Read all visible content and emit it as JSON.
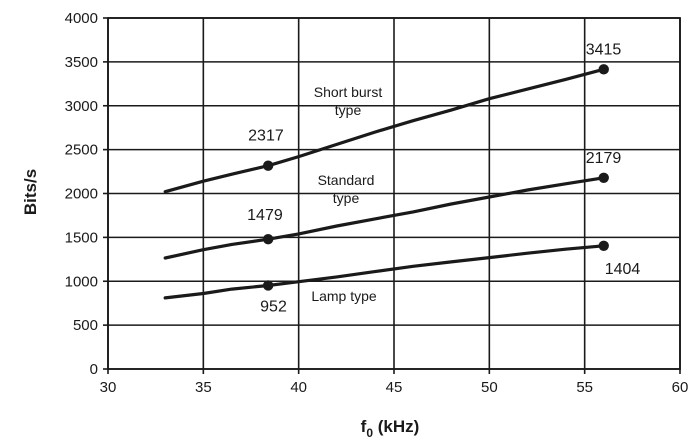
{
  "chart_data": {
    "type": "line",
    "xlabel_main": "f",
    "xlabel_sub": "0",
    "xlabel_unit": " (kHz)",
    "ylabel": "Bits/s",
    "xlim": [
      30,
      60
    ],
    "ylim": [
      0,
      4000
    ],
    "x_ticks": [
      30,
      35,
      40,
      45,
      50,
      55,
      60
    ],
    "y_ticks": [
      0,
      500,
      1000,
      1500,
      2000,
      2500,
      3000,
      3500,
      4000
    ],
    "grid": true,
    "series": [
      {
        "id": "short-burst",
        "x": [
          33,
          35,
          36.5,
          38.4,
          40,
          42,
          44,
          46,
          48,
          50,
          52,
          54,
          56
        ],
        "y": [
          2020,
          2140,
          2220,
          2317,
          2420,
          2560,
          2700,
          2830,
          2950,
          3080,
          3190,
          3300,
          3415
        ],
        "marked_points": [
          {
            "x": 38.4,
            "y": 2317,
            "label": "2317"
          },
          {
            "x": 56,
            "y": 3415,
            "label": "3415"
          }
        ],
        "annotation_lines": [
          "Short  burst",
          "type"
        ]
      },
      {
        "id": "standard",
        "x": [
          33,
          35,
          36.5,
          38.4,
          40,
          42,
          44,
          46,
          48,
          50,
          52,
          54,
          56
        ],
        "y": [
          1265,
          1360,
          1420,
          1479,
          1540,
          1630,
          1710,
          1790,
          1880,
          1960,
          2040,
          2110,
          2179
        ],
        "marked_points": [
          {
            "x": 38.4,
            "y": 1479,
            "label": "1479"
          },
          {
            "x": 56,
            "y": 2179,
            "label": "2179"
          }
        ],
        "annotation_lines": [
          "Standard",
          "type"
        ]
      },
      {
        "id": "lamp",
        "x": [
          33,
          35,
          36.5,
          38.4,
          40,
          42,
          44,
          46,
          48,
          50,
          52,
          54,
          56
        ],
        "y": [
          810,
          860,
          910,
          952,
          995,
          1050,
          1110,
          1170,
          1220,
          1270,
          1320,
          1365,
          1404
        ],
        "marked_points": [
          {
            "x": 38.4,
            "y": 952,
            "label": "952"
          },
          {
            "x": 56,
            "y": 1404,
            "label": "1404"
          }
        ],
        "annotation_lines": [
          "Lamp type"
        ]
      }
    ]
  }
}
